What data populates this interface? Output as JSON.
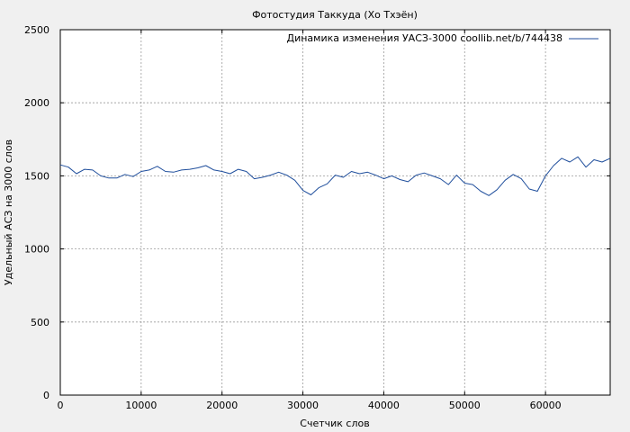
{
  "chart_data": {
    "type": "line",
    "title": "Фотостудия Таккуда (Хо Тхэён)",
    "xlabel": "Счетчик слов",
    "ylabel": "Удельный АСЗ на 3000 слов",
    "xlim": [
      0,
      68000
    ],
    "ylim": [
      0,
      2500
    ],
    "xticks": [
      0,
      10000,
      20000,
      30000,
      40000,
      50000,
      60000
    ],
    "yticks": [
      0,
      500,
      1000,
      1500,
      2000,
      2500
    ],
    "grid": true,
    "legend_position": "top-right",
    "series": [
      {
        "name": "Динамика изменения УАСЗ-3000 coollib.net/b/744438",
        "color": "#1f4e9c",
        "x": [
          0,
          1000,
          2000,
          3000,
          4000,
          5000,
          6000,
          7000,
          8000,
          9000,
          10000,
          11000,
          12000,
          13000,
          14000,
          15000,
          16000,
          17000,
          18000,
          19000,
          20000,
          21000,
          22000,
          23000,
          24000,
          25000,
          26000,
          27000,
          28000,
          29000,
          30000,
          31000,
          32000,
          33000,
          34000,
          35000,
          36000,
          37000,
          38000,
          39000,
          40000,
          41000,
          42000,
          43000,
          44000,
          45000,
          46000,
          47000,
          48000,
          49000,
          50000,
          51000,
          52000,
          53000,
          54000,
          55000,
          56000,
          57000,
          58000,
          59000,
          60000,
          61000,
          62000,
          63000,
          64000,
          65000,
          66000,
          67000,
          68000
        ],
        "y": [
          1575,
          1560,
          1515,
          1545,
          1540,
          1500,
          1485,
          1485,
          1510,
          1495,
          1530,
          1540,
          1565,
          1530,
          1525,
          1540,
          1545,
          1555,
          1570,
          1540,
          1530,
          1515,
          1545,
          1530,
          1480,
          1490,
          1505,
          1525,
          1505,
          1470,
          1400,
          1370,
          1420,
          1445,
          1505,
          1490,
          1530,
          1515,
          1525,
          1505,
          1480,
          1500,
          1475,
          1460,
          1505,
          1520,
          1500,
          1480,
          1440,
          1505,
          1450,
          1440,
          1395,
          1365,
          1405,
          1470,
          1510,
          1480,
          1410,
          1395,
          1500,
          1570,
          1620,
          1595,
          1630,
          1560,
          1610,
          1595,
          1620
        ]
      }
    ]
  }
}
